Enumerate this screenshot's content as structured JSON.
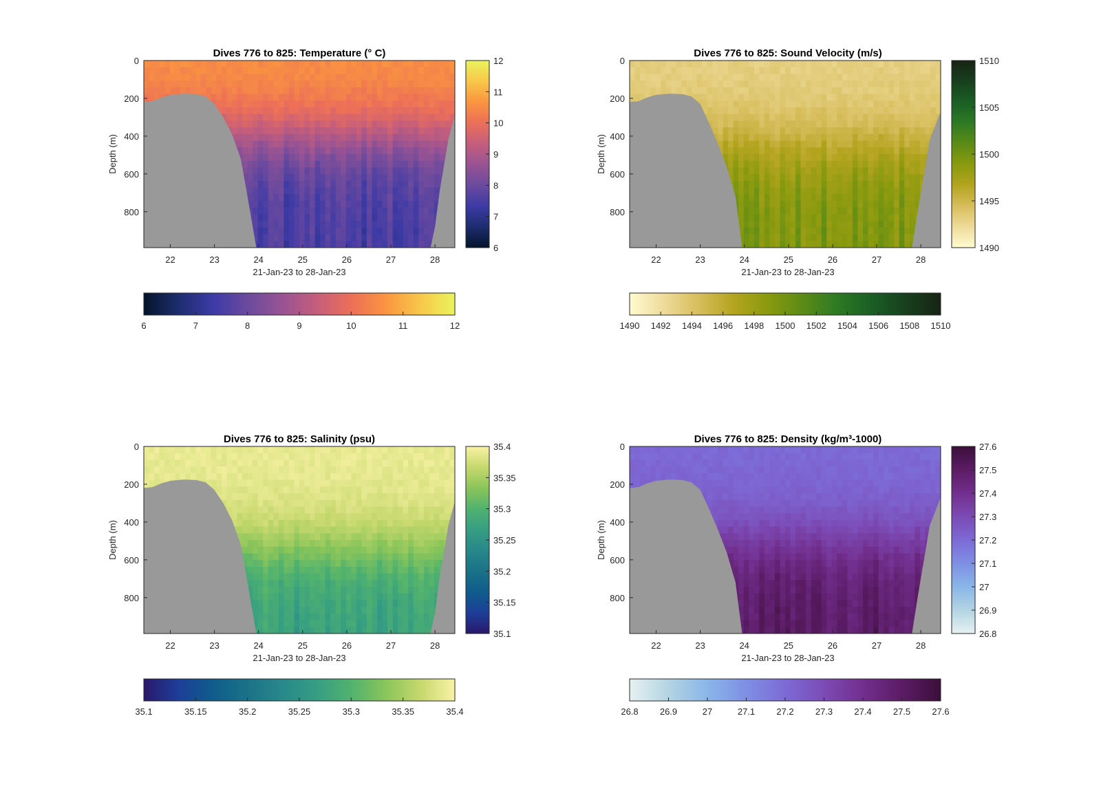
{
  "figure": {
    "background": "#ffffff",
    "land_mask_color": "#999999",
    "panels": [
      {
        "id": "temperature",
        "title": "Dives 776 to 825: Temperature (° C)",
        "cmap": "thermal"
      },
      {
        "id": "sound-velocity",
        "title": "Dives 776 to 825: Sound Velocity (m/s)",
        "cmap": "speed"
      },
      {
        "id": "salinity",
        "title": "Dives 776 to 825: Salinity (psu)",
        "cmap": "haline"
      },
      {
        "id": "density",
        "title": "Dives 776 to 825: Density (kg/m³-1000)",
        "cmap": "dense"
      }
    ]
  },
  "chart_data": [
    {
      "type": "heatmap",
      "title": "Dives 776 to 825: Temperature (° C)",
      "xlabel": "21-Jan-23 to 28-Jan-23",
      "ylabel": "Depth (m)",
      "x_ticks": [
        "22",
        "23",
        "24",
        "25",
        "26",
        "27",
        "28"
      ],
      "y_ticks": [
        "0",
        "200",
        "400",
        "600",
        "800"
      ],
      "xlim": [
        21.4,
        28.45
      ],
      "ylim": [
        0,
        990
      ],
      "y_reversed": true,
      "colorbar_vertical": {
        "ticks": [
          "6",
          "7",
          "8",
          "9",
          "10",
          "11",
          "12"
        ],
        "range": [
          6,
          12
        ]
      },
      "colorbar_horizontal": {
        "ticks": [
          "6",
          "7",
          "8",
          "9",
          "10",
          "11",
          "12"
        ],
        "range": [
          6,
          12
        ]
      },
      "value_profile": {
        "surface": 10.6,
        "deep": 7.5,
        "transition_depth": 400
      },
      "seafloor_profile": [
        [
          21.4,
          220
        ],
        [
          21.6,
          215
        ],
        [
          21.8,
          195
        ],
        [
          22.0,
          182
        ],
        [
          22.3,
          175
        ],
        [
          22.6,
          178
        ],
        [
          22.8,
          190
        ],
        [
          23.0,
          230
        ],
        [
          23.2,
          300
        ],
        [
          23.4,
          390
        ],
        [
          23.6,
          520
        ],
        [
          23.75,
          720
        ],
        [
          23.95,
          990
        ],
        [
          27.9,
          990
        ],
        [
          28.0,
          880
        ],
        [
          28.1,
          700
        ],
        [
          28.2,
          560
        ],
        [
          28.3,
          420
        ],
        [
          28.45,
          290
        ]
      ]
    },
    {
      "type": "heatmap",
      "title": "Dives 776 to 825: Sound Velocity (m/s)",
      "xlabel": "21-Jan-23 to 28-Jan-23",
      "ylabel": "Depth (m)",
      "x_ticks": [
        "22",
        "23",
        "24",
        "25",
        "26",
        "27",
        "28"
      ],
      "y_ticks": [
        "0",
        "200",
        "400",
        "600",
        "800"
      ],
      "xlim": [
        21.4,
        28.45
      ],
      "ylim": [
        0,
        990
      ],
      "y_reversed": true,
      "colorbar_vertical": {
        "ticks": [
          "1490",
          "1495",
          "1500",
          "1505",
          "1510"
        ],
        "range": [
          1490,
          1510
        ]
      },
      "colorbar_horizontal": {
        "ticks": [
          "1490",
          "1492",
          "1494",
          "1496",
          "1498",
          "1500",
          "1502",
          "1504",
          "1506",
          "1508",
          "1510"
        ],
        "range": [
          1490,
          1510
        ]
      },
      "value_profile": {
        "surface": 1493.0,
        "deep": 1499.5,
        "transition_depth": 450
      },
      "seafloor_profile": [
        [
          21.4,
          220
        ],
        [
          21.6,
          215
        ],
        [
          21.8,
          195
        ],
        [
          22.0,
          182
        ],
        [
          22.3,
          175
        ],
        [
          22.6,
          178
        ],
        [
          22.8,
          190
        ],
        [
          23.0,
          230
        ],
        [
          23.2,
          330
        ],
        [
          23.4,
          440
        ],
        [
          23.6,
          560
        ],
        [
          23.8,
          720
        ],
        [
          23.95,
          990
        ],
        [
          27.8,
          990
        ],
        [
          27.9,
          840
        ],
        [
          28.0,
          700
        ],
        [
          28.1,
          560
        ],
        [
          28.2,
          420
        ],
        [
          28.45,
          270
        ]
      ]
    },
    {
      "type": "heatmap",
      "title": "Dives 776 to 825: Salinity (psu)",
      "xlabel": "21-Jan-23 to 28-Jan-23",
      "ylabel": "Depth (m)",
      "x_ticks": [
        "22",
        "23",
        "24",
        "25",
        "26",
        "27",
        "28"
      ],
      "y_ticks": [
        "0",
        "200",
        "400",
        "600",
        "800"
      ],
      "xlim": [
        21.4,
        28.45
      ],
      "ylim": [
        0,
        990
      ],
      "y_reversed": true,
      "colorbar_vertical": {
        "ticks": [
          "35.1",
          "35.15",
          "35.2",
          "35.25",
          "35.3",
          "35.35",
          "35.4"
        ],
        "range": [
          35.1,
          35.4
        ]
      },
      "colorbar_horizontal": {
        "ticks": [
          "35.1",
          "35.15",
          "35.2",
          "35.25",
          "35.3",
          "35.35",
          "35.4"
        ],
        "range": [
          35.1,
          35.4
        ]
      },
      "value_profile": {
        "surface": 35.39,
        "deep": 35.27,
        "transition_depth": 550
      },
      "seafloor_profile": [
        [
          21.4,
          220
        ],
        [
          21.6,
          215
        ],
        [
          21.8,
          195
        ],
        [
          22.0,
          182
        ],
        [
          22.3,
          175
        ],
        [
          22.6,
          178
        ],
        [
          22.8,
          190
        ],
        [
          23.0,
          230
        ],
        [
          23.2,
          300
        ],
        [
          23.4,
          390
        ],
        [
          23.6,
          520
        ],
        [
          23.75,
          720
        ],
        [
          23.95,
          990
        ],
        [
          27.9,
          990
        ],
        [
          28.0,
          880
        ],
        [
          28.1,
          700
        ],
        [
          28.2,
          560
        ],
        [
          28.3,
          420
        ],
        [
          28.45,
          290
        ]
      ]
    },
    {
      "type": "heatmap",
      "title": "Dives 776 to 825: Density (kg/m³-1000)",
      "xlabel": "21-Jan-23 to 28-Jan-23",
      "ylabel": "Depth (m)",
      "x_ticks": [
        "22",
        "23",
        "24",
        "25",
        "26",
        "27",
        "28"
      ],
      "y_ticks": [
        "0",
        "200",
        "400",
        "600",
        "800"
      ],
      "xlim": [
        21.4,
        28.45
      ],
      "ylim": [
        0,
        990
      ],
      "y_reversed": true,
      "colorbar_vertical": {
        "ticks": [
          "26.8",
          "26.9",
          "27",
          "27.1",
          "27.2",
          "27.3",
          "27.4",
          "27.5",
          "27.6"
        ],
        "range": [
          26.8,
          27.6
        ]
      },
      "colorbar_horizontal": {
        "ticks": [
          "26.8",
          "26.9",
          "27",
          "27.1",
          "27.2",
          "27.3",
          "27.4",
          "27.5",
          "27.6"
        ],
        "range": [
          26.8,
          27.6
        ]
      },
      "value_profile": {
        "surface": 27.2,
        "deep": 27.5,
        "transition_depth": 500
      },
      "seafloor_profile": [
        [
          21.4,
          220
        ],
        [
          21.6,
          215
        ],
        [
          21.8,
          195
        ],
        [
          22.0,
          182
        ],
        [
          22.3,
          175
        ],
        [
          22.6,
          178
        ],
        [
          22.8,
          190
        ],
        [
          23.0,
          230
        ],
        [
          23.2,
          330
        ],
        [
          23.4,
          440
        ],
        [
          23.6,
          560
        ],
        [
          23.8,
          720
        ],
        [
          23.95,
          990
        ],
        [
          27.8,
          990
        ],
        [
          27.9,
          840
        ],
        [
          28.0,
          700
        ],
        [
          28.1,
          560
        ],
        [
          28.2,
          420
        ],
        [
          28.45,
          270
        ]
      ]
    }
  ]
}
